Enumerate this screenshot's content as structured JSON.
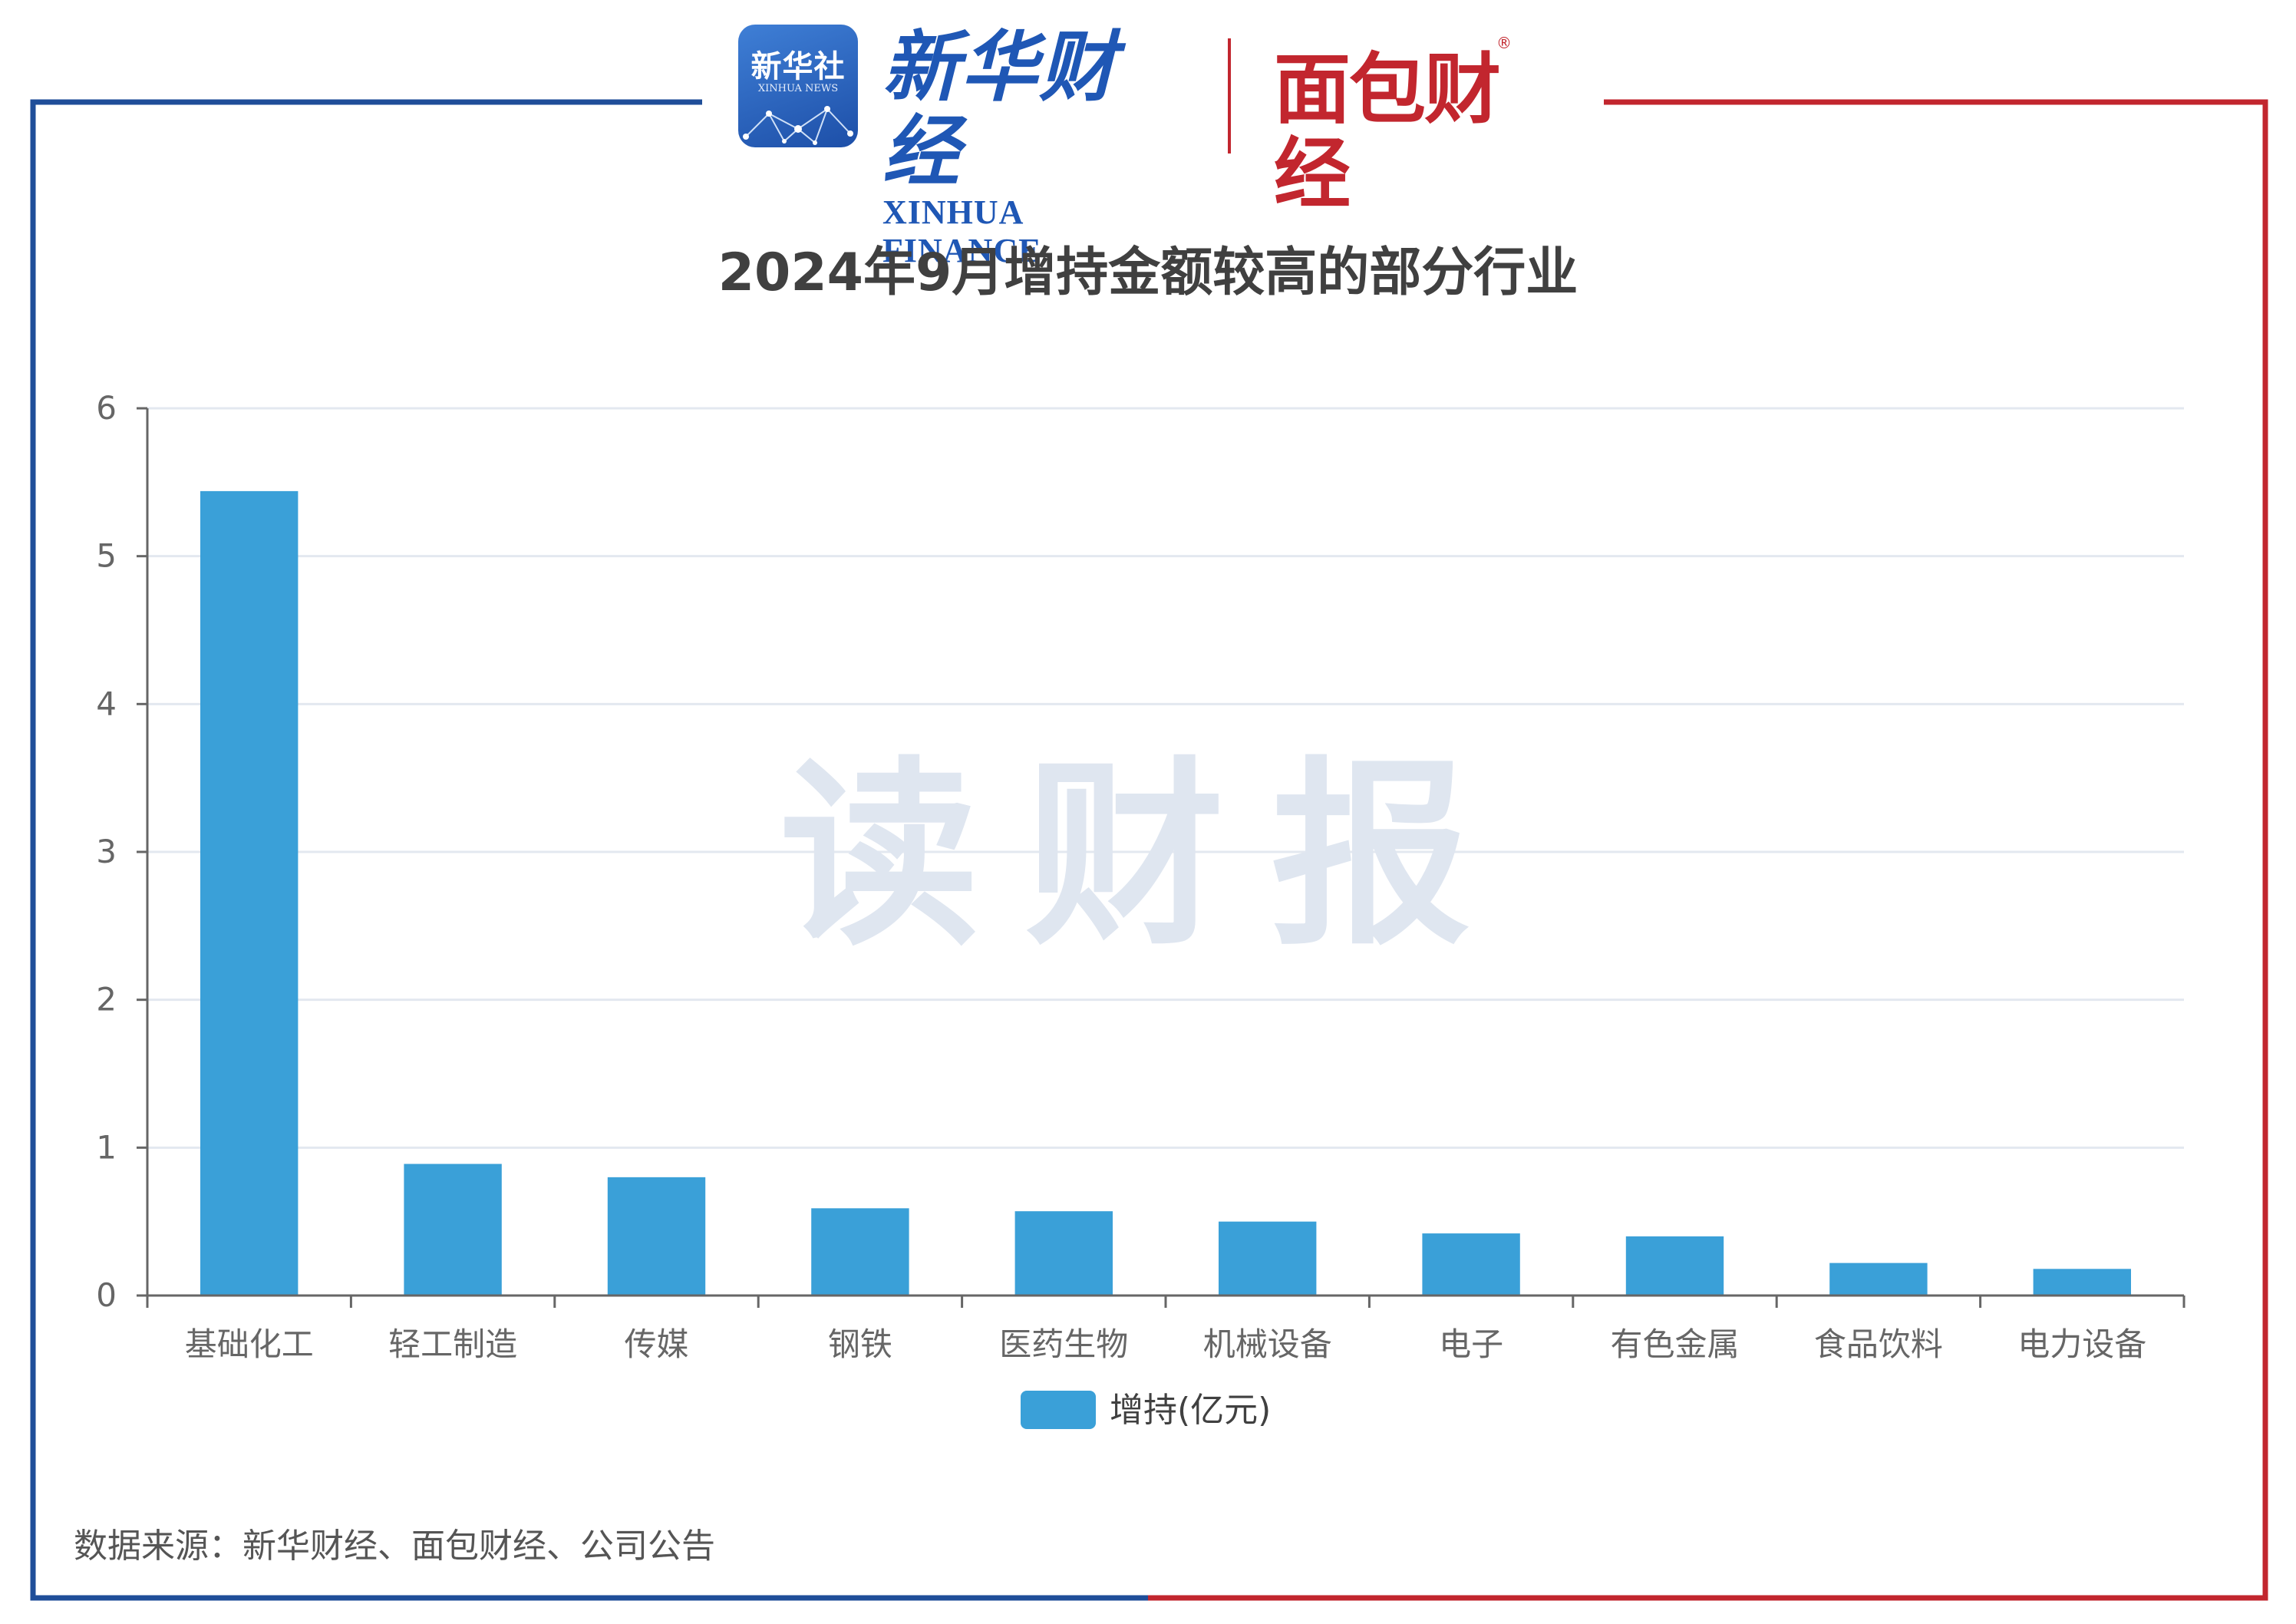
{
  "header": {
    "xinhua_badge_cn": "新华社",
    "xinhua_badge_en": "XINHUA NEWS",
    "xinhua_finance_cn": "新华财经",
    "xinhua_finance_en": "XINHUA FINANCE",
    "mianbao_finance": "面包财经",
    "registered_mark": "®"
  },
  "watermark": "读财报",
  "source_note": "数据来源：新华财经、面包财经、公司公告",
  "colors": {
    "bar": "#3aa0d8",
    "frame_left": "#1f4e99",
    "frame_right": "#c2262e",
    "grid": "#e3e8f0"
  },
  "chart_data": {
    "type": "bar",
    "title": "2024年9月增持金额较高的部分行业",
    "categories": [
      "基础化工",
      "轻工制造",
      "传媒",
      "钢铁",
      "医药生物",
      "机械设备",
      "电子",
      "有色金属",
      "食品饮料",
      "电力设备"
    ],
    "series": [
      {
        "name": "增持(亿元)",
        "values": [
          5.44,
          0.89,
          0.8,
          0.59,
          0.57,
          0.5,
          0.42,
          0.4,
          0.22,
          0.18
        ]
      }
    ],
    "yticks": [
      "0",
      "1",
      "2",
      "3",
      "4",
      "5",
      "6"
    ],
    "ylim": [
      0,
      6
    ],
    "grid": true,
    "legend_position": "bottom"
  }
}
